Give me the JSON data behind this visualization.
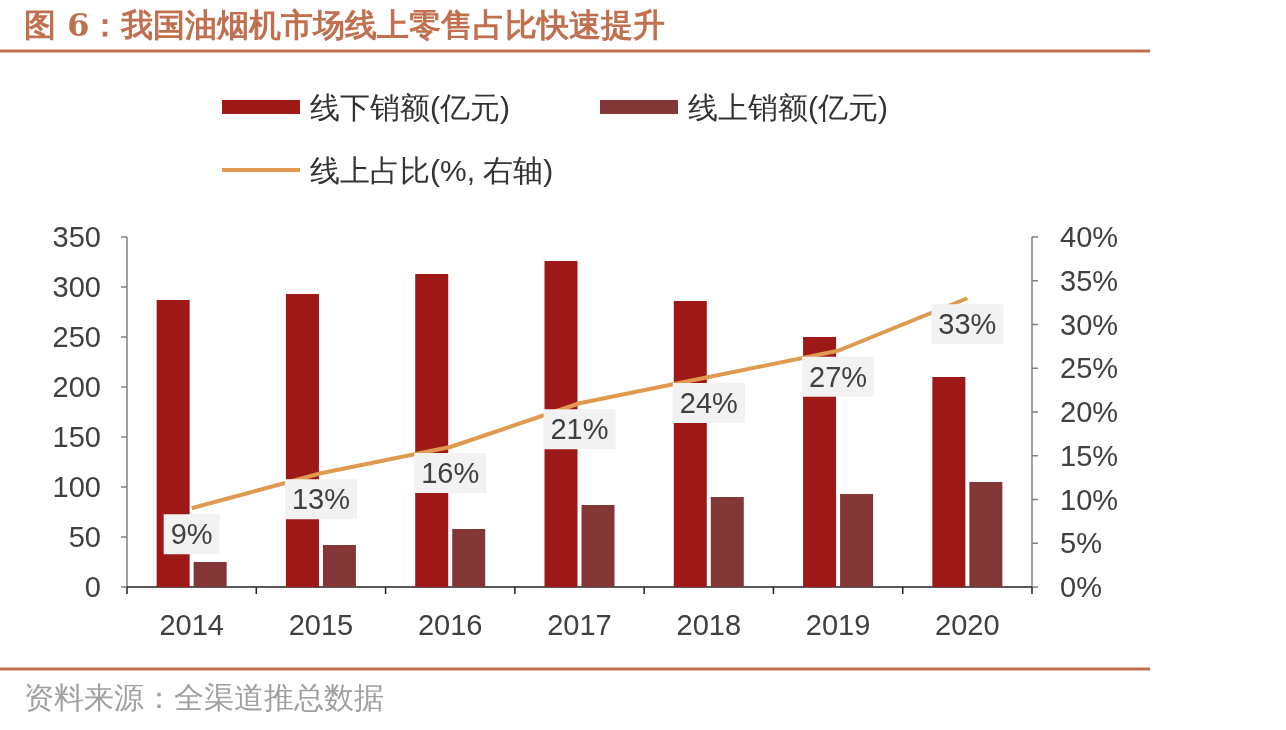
{
  "chart_data": {
    "type": "bar",
    "title": "图 6：我国油烟机市场线上零售占比快速提升",
    "categories": [
      "2014",
      "2015",
      "2016",
      "2017",
      "2018",
      "2019",
      "2020"
    ],
    "series": [
      {
        "name": "线下销额(亿元)",
        "color": "#9e1818",
        "values": [
          287,
          293,
          313,
          326,
          286,
          250,
          210
        ]
      },
      {
        "name": "线上销额(亿元)",
        "color": "#833636",
        "values": [
          25,
          42,
          58,
          82,
          90,
          93,
          105
        ]
      },
      {
        "name": "线上占比(%, 右轴)",
        "type": "line",
        "axis": "y2",
        "color": "#e09a50",
        "values": [
          9,
          13,
          16,
          21,
          24,
          27,
          33
        ],
        "value_labels": [
          "9%",
          "13%",
          "16%",
          "21%",
          "24%",
          "27%",
          "33%"
        ]
      }
    ],
    "ylim": [
      0,
      350
    ],
    "yticks": [
      0,
      50,
      100,
      150,
      200,
      250,
      300,
      350
    ],
    "y2lim": [
      0,
      40
    ],
    "y2ticks": [
      {
        "value": 0,
        "label": "0%"
      },
      {
        "value": 5,
        "label": "5%"
      },
      {
        "value": 10,
        "label": "10%"
      },
      {
        "value": 15,
        "label": "15%"
      },
      {
        "value": 20,
        "label": "20%"
      },
      {
        "value": 25,
        "label": "25%"
      },
      {
        "value": 30,
        "label": "30%"
      },
      {
        "value": 35,
        "label": "35%"
      },
      {
        "value": 40,
        "label": "40%"
      }
    ],
    "legend": "top",
    "annotations": [
      "资料来源：全渠道推总数据"
    ]
  }
}
